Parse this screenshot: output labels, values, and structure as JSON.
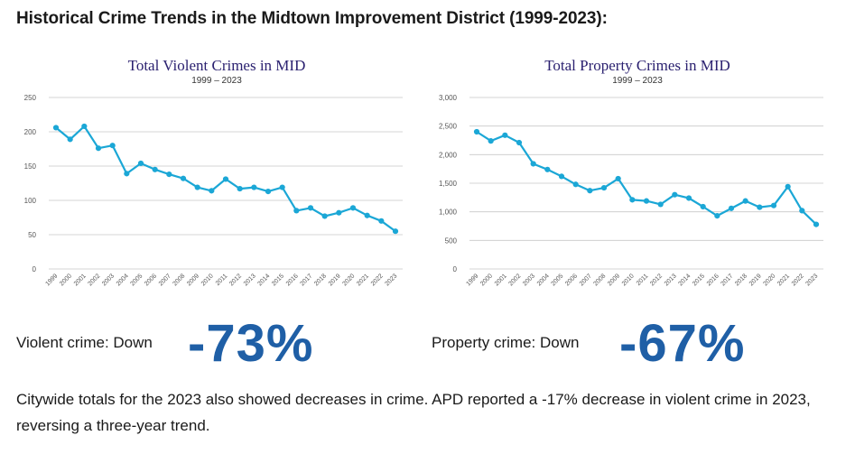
{
  "page": {
    "title": "Historical Crime Trends in the Midtown Improvement District (1999-2023):"
  },
  "chart_data": [
    {
      "type": "line",
      "title": "Total Violent Crimes in MID",
      "subtitle": "1999 – 2023",
      "x": [
        "1999",
        "2000",
        "2001",
        "2002",
        "2003",
        "2004",
        "2005",
        "2006",
        "2007",
        "2008",
        "2009",
        "2010",
        "2011",
        "2012",
        "2013",
        "2014",
        "2015",
        "2016",
        "2017",
        "2018",
        "2019",
        "2020",
        "2021",
        "2022",
        "2023"
      ],
      "series": [
        {
          "values": [
            206,
            189,
            208,
            176,
            180,
            139,
            154,
            145,
            138,
            132,
            119,
            114,
            131,
            117,
            119,
            113,
            119,
            85,
            89,
            77,
            82,
            89,
            78,
            70,
            55
          ]
        }
      ],
      "yticks": [
        "0",
        "50",
        "100",
        "150",
        "200",
        "250"
      ],
      "ylim": [
        0,
        250
      ],
      "grid": true,
      "color": "#1ba7d6"
    },
    {
      "type": "line",
      "title": "Total Property Crimes in MID",
      "subtitle": "1999 – 2023",
      "x": [
        "1999",
        "2000",
        "2001",
        "2002",
        "2003",
        "2004",
        "2005",
        "2006",
        "2007",
        "2008",
        "2009",
        "2010",
        "2011",
        "2012",
        "2013",
        "2014",
        "2015",
        "2016",
        "2017",
        "2018",
        "2019",
        "2020",
        "2021",
        "2022",
        "2023"
      ],
      "series": [
        {
          "values": [
            2400,
            2240,
            2340,
            2210,
            1840,
            1740,
            1620,
            1480,
            1370,
            1420,
            1580,
            1210,
            1190,
            1130,
            1300,
            1240,
            1090,
            930,
            1060,
            1190,
            1080,
            1110,
            1440,
            1020,
            780
          ]
        }
      ],
      "yticks": [
        "0",
        "500",
        "1,000",
        "1,500",
        "2,000",
        "2,500",
        "3,000"
      ],
      "ylim": [
        0,
        3000
      ],
      "grid": true,
      "color": "#1ba7d6"
    }
  ],
  "stats": {
    "violent_label": "Violent crime: Down",
    "violent_value": "-73%",
    "property_label": "Property crime: Down",
    "property_value": "-67%",
    "accent": "#1f5fa6"
  },
  "footer": {
    "text": "Citywide totals for the 2023 also showed decreases in crime. APD reported a -17% decrease in violent crime in 2023, reversing a three-year trend."
  }
}
